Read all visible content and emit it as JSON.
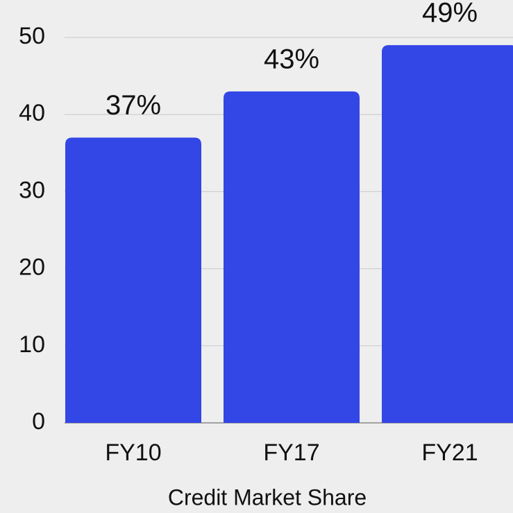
{
  "chart_data": {
    "type": "bar",
    "categories": [
      "FY10",
      "FY17",
      "FY21"
    ],
    "values": [
      37,
      43,
      49
    ],
    "value_labels": [
      "37%",
      "43%",
      "49%"
    ],
    "color": "#3346e6",
    "x_label": "Credit Market Share",
    "ylim": [
      0,
      50
    ],
    "yticks": [
      0,
      10,
      20,
      30,
      40,
      50
    ],
    "grid": true
  }
}
